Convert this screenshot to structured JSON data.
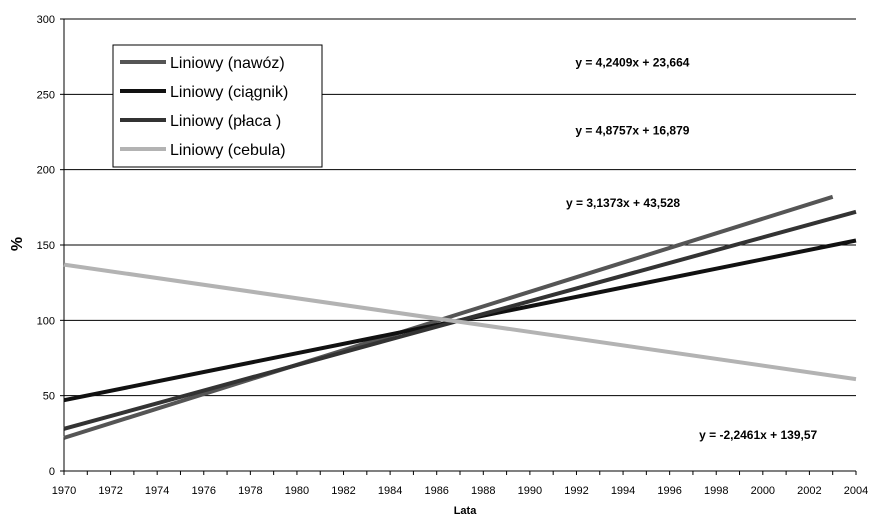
{
  "chart_data": {
    "type": "line",
    "xlabel": "Lata",
    "ylabel": "%",
    "xlim": [
      1970,
      2004
    ],
    "ylim": [
      0,
      300
    ],
    "y_ticks": [
      "0",
      "50",
      "100",
      "150",
      "200",
      "250",
      "300"
    ],
    "x_ticks": [
      "1970",
      "1972",
      "1974",
      "1976",
      "1978",
      "1980",
      "1982",
      "1984",
      "1986",
      "1988",
      "1990",
      "1992",
      "1994",
      "1996",
      "1998",
      "2000",
      "2002",
      "2004"
    ],
    "grid": "horizontal",
    "legend_placement": "top-left",
    "series": [
      {
        "name": "Liniowy (nawóz)",
        "color": "#555555",
        "x": [
          1970,
          2003
        ],
        "y": [
          22,
          182
        ]
      },
      {
        "name": "Liniowy (ciągnik)",
        "color": "#111111",
        "x": [
          1970,
          2004
        ],
        "y": [
          47,
          153
        ]
      },
      {
        "name": "Liniowy (płaca )",
        "color": "#333333",
        "x": [
          1970,
          2004
        ],
        "y": [
          28,
          172
        ]
      },
      {
        "name": "Liniowy (cebula)",
        "color": "#b3b3b3",
        "x": [
          1970,
          2004
        ],
        "y": [
          137,
          61
        ]
      }
    ],
    "annotations": [
      {
        "text": "y = 4,2409x + 23,664",
        "x": 1994.4,
        "y": 271
      },
      {
        "text": "y = 4,8757x + 16,879",
        "x": 1994.4,
        "y": 226
      },
      {
        "text": "y = 3,1373x + 43,528",
        "x": 1994.0,
        "y": 178
      },
      {
        "text": "y = -2,2461x + 139,57",
        "x": 1999.8,
        "y": 24
      }
    ]
  }
}
